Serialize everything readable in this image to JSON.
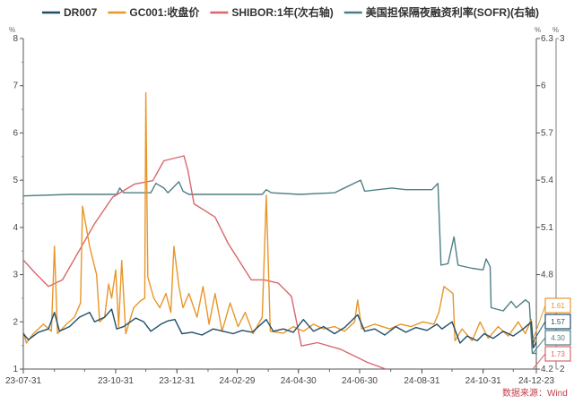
{
  "chart_data": {
    "type": "line",
    "title": "",
    "x_type": "date",
    "xlim": [
      "2023-07-31",
      "2024-12-23"
    ],
    "x_tick_labels": [
      "23-07-31",
      "23-10-31",
      "23-12-31",
      "24-02-29",
      "24-04-30",
      "24-06-30",
      "24-08-31",
      "24-10-31",
      "24-12-23"
    ],
    "x_tick_dates": [
      "2023-07-31",
      "2023-10-31",
      "2023-12-31",
      "2024-02-29",
      "2024-04-30",
      "2024-06-30",
      "2024-08-31",
      "2024-10-31",
      "2024-12-23"
    ],
    "axes": {
      "left": {
        "unit": "%",
        "ylim": [
          1,
          8
        ],
        "ticks": [
          "1",
          "2",
          "3",
          "4",
          "5",
          "6",
          "7",
          "8"
        ]
      },
      "right": {
        "unit": "%",
        "ylim": [
          4.2,
          6.3
        ],
        "ticks": [
          "4.2",
          "4.8",
          "5.1",
          "5.4",
          "5.7",
          "6",
          "6.3"
        ],
        "tick_values": [
          4.2,
          4.8,
          5.1,
          5.4,
          5.7,
          6.0,
          6.3
        ]
      },
      "right2": {
        "unit": "%",
        "ylim": [
          2,
          3
        ],
        "ticks": [
          "2",
          "3"
        ]
      }
    },
    "grid": false,
    "legend_position": "top",
    "source": "数据来源：Wind",
    "series": [
      {
        "name": "DR007",
        "axis": "left",
        "color": "#1f4e6b",
        "end_label": "1.57",
        "points": [
          [
            "2023-07-31",
            1.75
          ],
          [
            "2023-08-05",
            1.62
          ],
          [
            "2023-08-15",
            1.78
          ],
          [
            "2023-08-25",
            1.85
          ],
          [
            "2023-08-31",
            2.2
          ],
          [
            "2023-09-05",
            1.8
          ],
          [
            "2023-09-15",
            1.9
          ],
          [
            "2023-09-25",
            2.1
          ],
          [
            "2023-10-05",
            2.2
          ],
          [
            "2023-10-10",
            2.0
          ],
          [
            "2023-10-20",
            2.1
          ],
          [
            "2023-10-27",
            2.27
          ],
          [
            "2023-11-01",
            1.85
          ],
          [
            "2023-11-08",
            1.9
          ],
          [
            "2023-11-20",
            2.08
          ],
          [
            "2023-11-28",
            2.0
          ],
          [
            "2023-12-05",
            1.8
          ],
          [
            "2023-12-15",
            1.95
          ],
          [
            "2023-12-22",
            2.02
          ],
          [
            "2023-12-29",
            2.05
          ],
          [
            "2024-01-05",
            1.75
          ],
          [
            "2024-01-15",
            1.78
          ],
          [
            "2024-01-25",
            1.72
          ],
          [
            "2024-02-05",
            1.85
          ],
          [
            "2024-02-15",
            1.8
          ],
          [
            "2024-02-25",
            1.75
          ],
          [
            "2024-03-05",
            1.82
          ],
          [
            "2024-03-15",
            1.78
          ],
          [
            "2024-03-29",
            2.05
          ],
          [
            "2024-04-05",
            1.8
          ],
          [
            "2024-04-15",
            1.85
          ],
          [
            "2024-04-25",
            1.78
          ],
          [
            "2024-05-05",
            2.05
          ],
          [
            "2024-05-15",
            1.8
          ],
          [
            "2024-05-25",
            1.9
          ],
          [
            "2024-06-05",
            1.75
          ],
          [
            "2024-06-15",
            1.88
          ],
          [
            "2024-06-28",
            2.15
          ],
          [
            "2024-07-05",
            1.8
          ],
          [
            "2024-07-15",
            1.85
          ],
          [
            "2024-07-25",
            1.72
          ],
          [
            "2024-08-05",
            1.9
          ],
          [
            "2024-08-15",
            1.78
          ],
          [
            "2024-08-25",
            1.88
          ],
          [
            "2024-09-05",
            1.82
          ],
          [
            "2024-09-15",
            1.95
          ],
          [
            "2024-09-20",
            1.85
          ],
          [
            "2024-09-30",
            2.0
          ],
          [
            "2024-10-08",
            1.55
          ],
          [
            "2024-10-15",
            1.7
          ],
          [
            "2024-10-25",
            1.6
          ],
          [
            "2024-11-01",
            1.75
          ],
          [
            "2024-11-10",
            1.65
          ],
          [
            "2024-11-20",
            1.8
          ],
          [
            "2024-11-30",
            1.7
          ],
          [
            "2024-12-10",
            1.85
          ],
          [
            "2024-12-18",
            2.0
          ],
          [
            "2024-12-20",
            1.45
          ],
          [
            "2024-12-23",
            1.57
          ]
        ]
      },
      {
        "name": "GC001:收盘价",
        "axis": "left",
        "color": "#e8962a",
        "end_label": "1.61",
        "points": [
          [
            "2023-07-31",
            1.8
          ],
          [
            "2023-08-03",
            1.55
          ],
          [
            "2023-08-10",
            1.75
          ],
          [
            "2023-08-20",
            1.95
          ],
          [
            "2023-08-28",
            1.8
          ],
          [
            "2023-08-31",
            3.6
          ],
          [
            "2023-09-03",
            1.75
          ],
          [
            "2023-09-12",
            1.95
          ],
          [
            "2023-09-20",
            2.1
          ],
          [
            "2023-09-26",
            2.4
          ],
          [
            "2023-09-28",
            4.45
          ],
          [
            "2023-10-05",
            3.6
          ],
          [
            "2023-10-12",
            3.0
          ],
          [
            "2023-10-15",
            2.0
          ],
          [
            "2023-10-20",
            2.1
          ],
          [
            "2023-10-24",
            2.8
          ],
          [
            "2023-10-27",
            2.5
          ],
          [
            "2023-10-31",
            3.1
          ],
          [
            "2023-11-03",
            1.9
          ],
          [
            "2023-11-06",
            3.3
          ],
          [
            "2023-11-10",
            1.75
          ],
          [
            "2023-11-18",
            2.3
          ],
          [
            "2023-11-25",
            2.45
          ],
          [
            "2023-11-29",
            2.5
          ],
          [
            "2023-11-30",
            6.85
          ],
          [
            "2023-12-02",
            2.95
          ],
          [
            "2023-12-08",
            2.5
          ],
          [
            "2023-12-14",
            2.3
          ],
          [
            "2023-12-20",
            2.6
          ],
          [
            "2023-12-25",
            2.2
          ],
          [
            "2023-12-28",
            3.6
          ],
          [
            "2024-01-02",
            2.75
          ],
          [
            "2024-01-06",
            2.3
          ],
          [
            "2024-01-12",
            2.6
          ],
          [
            "2024-01-20",
            2.1
          ],
          [
            "2024-01-26",
            2.75
          ],
          [
            "2024-02-01",
            1.95
          ],
          [
            "2024-02-07",
            2.6
          ],
          [
            "2024-02-14",
            1.8
          ],
          [
            "2024-02-22",
            2.4
          ],
          [
            "2024-03-01",
            1.9
          ],
          [
            "2024-03-08",
            2.2
          ],
          [
            "2024-03-16",
            1.75
          ],
          [
            "2024-03-25",
            2.1
          ],
          [
            "2024-03-29",
            4.68
          ],
          [
            "2024-04-02",
            1.8
          ],
          [
            "2024-04-15",
            1.76
          ],
          [
            "2024-04-25",
            1.9
          ],
          [
            "2024-05-05",
            1.8
          ],
          [
            "2024-05-15",
            1.95
          ],
          [
            "2024-05-25",
            1.85
          ],
          [
            "2024-06-05",
            1.9
          ],
          [
            "2024-06-15",
            1.8
          ],
          [
            "2024-06-25",
            2.0
          ],
          [
            "2024-06-28",
            2.46
          ],
          [
            "2024-07-02",
            1.85
          ],
          [
            "2024-07-15",
            1.95
          ],
          [
            "2024-07-30",
            1.85
          ],
          [
            "2024-08-10",
            1.95
          ],
          [
            "2024-08-20",
            1.9
          ],
          [
            "2024-09-01",
            2.0
          ],
          [
            "2024-09-12",
            1.95
          ],
          [
            "2024-09-17",
            2.2
          ],
          [
            "2024-09-22",
            2.75
          ],
          [
            "2024-10-01",
            2.6
          ],
          [
            "2024-10-03",
            1.6
          ],
          [
            "2024-10-10",
            1.85
          ],
          [
            "2024-10-20",
            1.6
          ],
          [
            "2024-10-28",
            2.0
          ],
          [
            "2024-11-05",
            1.65
          ],
          [
            "2024-11-15",
            1.9
          ],
          [
            "2024-11-25",
            1.7
          ],
          [
            "2024-12-05",
            2.0
          ],
          [
            "2024-12-12",
            1.75
          ],
          [
            "2024-12-18",
            2.05
          ],
          [
            "2024-12-20",
            1.55
          ],
          [
            "2024-12-23",
            1.61
          ]
        ]
      },
      {
        "name": "SHIBOR:1年(次右轴)",
        "axis": "right2",
        "color": "#d9676b",
        "end_label": "1.73",
        "points": [
          [
            "2023-07-31",
            2.33
          ],
          [
            "2023-08-12",
            2.29
          ],
          [
            "2023-08-25",
            2.25
          ],
          [
            "2023-09-08",
            2.27
          ],
          [
            "2023-10-10",
            2.44
          ],
          [
            "2023-10-28",
            2.52
          ],
          [
            "2023-11-19",
            2.56
          ],
          [
            "2023-12-07",
            2.57
          ],
          [
            "2023-12-18",
            2.63
          ],
          [
            "2024-01-07",
            2.645
          ],
          [
            "2024-01-11",
            2.6
          ],
          [
            "2024-01-17",
            2.5
          ],
          [
            "2024-02-07",
            2.46
          ],
          [
            "2024-02-20",
            2.38
          ],
          [
            "2024-03-14",
            2.27
          ],
          [
            "2024-03-27",
            2.27
          ],
          [
            "2024-04-10",
            2.26
          ],
          [
            "2024-04-23",
            2.22
          ],
          [
            "2024-05-03",
            2.07
          ],
          [
            "2024-05-19",
            2.08
          ],
          [
            "2024-06-11",
            2.06
          ],
          [
            "2024-07-08",
            2.02
          ],
          [
            "2024-07-26",
            2.0
          ],
          [
            "2024-09-30",
            1.85
          ],
          [
            "2024-12-23",
            1.73
          ]
        ]
      },
      {
        "name": "美国担保隔夜融资利率(SOFR)(右轴)",
        "axis": "right",
        "color": "#4e7f86",
        "end_label": "4.30",
        "points": [
          [
            "2023-07-31",
            5.3
          ],
          [
            "2023-09-15",
            5.31
          ],
          [
            "2023-11-01",
            5.31
          ],
          [
            "2023-11-04",
            5.35
          ],
          [
            "2023-11-08",
            5.32
          ],
          [
            "2023-12-05",
            5.32
          ],
          [
            "2023-12-10",
            5.38
          ],
          [
            "2023-12-18",
            5.35
          ],
          [
            "2023-12-22",
            5.32
          ],
          [
            "2024-01-02",
            5.39
          ],
          [
            "2024-01-06",
            5.33
          ],
          [
            "2024-01-12",
            5.31
          ],
          [
            "2024-03-25",
            5.31
          ],
          [
            "2024-03-29",
            5.34
          ],
          [
            "2024-04-03",
            5.32
          ],
          [
            "2024-05-01",
            5.31
          ],
          [
            "2024-06-05",
            5.32
          ],
          [
            "2024-07-01",
            5.4
          ],
          [
            "2024-07-05",
            5.33
          ],
          [
            "2024-08-01",
            5.35
          ],
          [
            "2024-08-15",
            5.34
          ],
          [
            "2024-09-10",
            5.34
          ],
          [
            "2024-09-16",
            5.38
          ],
          [
            "2024-09-19",
            4.86
          ],
          [
            "2024-09-26",
            4.87
          ],
          [
            "2024-10-02",
            5.04
          ],
          [
            "2024-10-06",
            4.86
          ],
          [
            "2024-10-20",
            4.84
          ],
          [
            "2024-10-31",
            4.83
          ],
          [
            "2024-11-03",
            4.9
          ],
          [
            "2024-11-07",
            4.85
          ],
          [
            "2024-11-08",
            4.59
          ],
          [
            "2024-11-20",
            4.57
          ],
          [
            "2024-11-28",
            4.63
          ],
          [
            "2024-12-03",
            4.59
          ],
          [
            "2024-12-12",
            4.64
          ],
          [
            "2024-12-16",
            4.62
          ],
          [
            "2024-12-19",
            4.3
          ],
          [
            "2024-12-23",
            4.3
          ]
        ]
      }
    ]
  }
}
